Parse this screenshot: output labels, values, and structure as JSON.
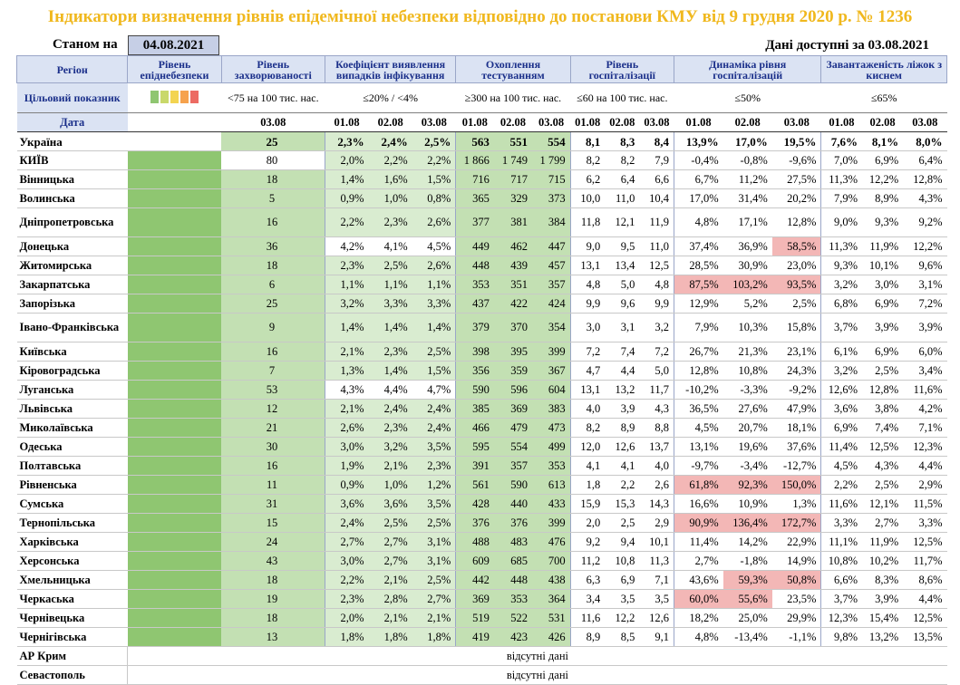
{
  "title": "Індикатори визначення рівнів епідемічної небезпеки відповідно до постанови КМУ від 9 грудня 2020 р. № 1236",
  "as_of_label": "Станом на",
  "as_of_date": "04.08.2021",
  "available_label": "Дані доступні за 03.08.2021",
  "headers": {
    "region": "Регіон",
    "level": "Рівень епіднебезпеки",
    "incidence": "Рівень захворюваності",
    "positivity": "Коефіцієнт виявлення випадків інфікування",
    "testing": "Охоплення тестуванням",
    "hosp": "Рівень госпіталізації",
    "hosp_dyn": "Динаміка рівня госпіталізацій",
    "oxygen": "Завантаженість ліжок з киснем"
  },
  "targets": {
    "label": "Цільовий показник",
    "incidence": "<75 на 100 тис. нас.",
    "positivity": "≤20% / <4%",
    "testing": "≥300 на 100 тис. нас.",
    "hosp": "≤60 на 100 тис. нас.",
    "hosp_dyn": "≤50%",
    "oxygen": "≤65%"
  },
  "level_colors": [
    "#8fc671",
    "#c9d86a",
    "#f3d451",
    "#f6a24d",
    "#ec6b63"
  ],
  "dates": {
    "label": "Дата",
    "incidence": "03.08",
    "d1": "01.08",
    "d2": "02.08",
    "d3": "03.08"
  },
  "absent_text": "відсутні дані",
  "rows": [
    {
      "region": "Україна",
      "inc": "25",
      "pos": [
        "2,3%",
        "2,4%",
        "2,5%"
      ],
      "test": [
        "563",
        "551",
        "554"
      ],
      "hosp": [
        "8,1",
        "8,3",
        "8,4"
      ],
      "dyn": [
        "13,9%",
        "17,0%",
        "19,5%"
      ],
      "oxy": [
        "7,6%",
        "8,1%",
        "8,0%"
      ]
    },
    {
      "region": "КИЇВ",
      "inc": "80",
      "pos": [
        "2,0%",
        "2,2%",
        "2,2%"
      ],
      "test": [
        "1 866",
        "1 749",
        "1 799"
      ],
      "hosp": [
        "8,2",
        "8,2",
        "7,9"
      ],
      "dyn": [
        "-0,4%",
        "-0,8%",
        "-9,6%"
      ],
      "oxy": [
        "7,0%",
        "6,9%",
        "6,4%"
      ]
    },
    {
      "region": "Вінницька",
      "inc": "18",
      "pos": [
        "1,4%",
        "1,6%",
        "1,5%"
      ],
      "test": [
        "716",
        "717",
        "715"
      ],
      "hosp": [
        "6,2",
        "6,4",
        "6,6"
      ],
      "dyn": [
        "6,7%",
        "11,2%",
        "27,5%"
      ],
      "oxy": [
        "11,3%",
        "12,2%",
        "12,8%"
      ]
    },
    {
      "region": "Волинська",
      "inc": "5",
      "pos": [
        "0,9%",
        "1,0%",
        "0,8%"
      ],
      "test": [
        "365",
        "329",
        "373"
      ],
      "hosp": [
        "10,0",
        "11,0",
        "10,4"
      ],
      "dyn": [
        "17,0%",
        "31,4%",
        "20,2%"
      ],
      "oxy": [
        "7,9%",
        "8,9%",
        "4,3%"
      ]
    },
    {
      "region": "Дніпропетровська",
      "inc": "16",
      "pos": [
        "2,2%",
        "2,3%",
        "2,6%"
      ],
      "test": [
        "377",
        "381",
        "384"
      ],
      "hosp": [
        "11,8",
        "12,1",
        "11,9"
      ],
      "dyn": [
        "4,8%",
        "17,1%",
        "12,8%"
      ],
      "oxy": [
        "9,0%",
        "9,3%",
        "9,2%"
      ]
    },
    {
      "region": "Донецька",
      "inc": "36",
      "pos": [
        "4,2%",
        "4,1%",
        "4,5%"
      ],
      "test": [
        "449",
        "462",
        "447"
      ],
      "hosp": [
        "9,0",
        "9,5",
        "11,0"
      ],
      "dyn": [
        "37,4%",
        "36,9%",
        "58,5%"
      ],
      "oxy": [
        "11,3%",
        "11,9%",
        "12,2%"
      ]
    },
    {
      "region": "Житомирська",
      "inc": "18",
      "pos": [
        "2,3%",
        "2,5%",
        "2,6%"
      ],
      "test": [
        "448",
        "439",
        "457"
      ],
      "hosp": [
        "13,1",
        "13,4",
        "12,5"
      ],
      "dyn": [
        "28,5%",
        "30,9%",
        "23,0%"
      ],
      "oxy": [
        "9,3%",
        "10,1%",
        "9,6%"
      ]
    },
    {
      "region": "Закарпатська",
      "inc": "6",
      "pos": [
        "1,1%",
        "1,1%",
        "1,1%"
      ],
      "test": [
        "353",
        "351",
        "357"
      ],
      "hosp": [
        "4,8",
        "5,0",
        "4,8"
      ],
      "dyn": [
        "87,5%",
        "103,2%",
        "93,5%"
      ],
      "oxy": [
        "3,2%",
        "3,0%",
        "3,1%"
      ]
    },
    {
      "region": "Запорізька",
      "inc": "25",
      "pos": [
        "3,2%",
        "3,3%",
        "3,3%"
      ],
      "test": [
        "437",
        "422",
        "424"
      ],
      "hosp": [
        "9,9",
        "9,6",
        "9,9"
      ],
      "dyn": [
        "12,9%",
        "5,2%",
        "2,5%"
      ],
      "oxy": [
        "6,8%",
        "6,9%",
        "7,2%"
      ]
    },
    {
      "region": "Івано-Франківська",
      "inc": "9",
      "pos": [
        "1,4%",
        "1,4%",
        "1,4%"
      ],
      "test": [
        "379",
        "370",
        "354"
      ],
      "hosp": [
        "3,0",
        "3,1",
        "3,2"
      ],
      "dyn": [
        "7,9%",
        "10,3%",
        "15,8%"
      ],
      "oxy": [
        "3,7%",
        "3,9%",
        "3,9%"
      ]
    },
    {
      "region": "Київська",
      "inc": "16",
      "pos": [
        "2,1%",
        "2,3%",
        "2,5%"
      ],
      "test": [
        "398",
        "395",
        "399"
      ],
      "hosp": [
        "7,2",
        "7,4",
        "7,2"
      ],
      "dyn": [
        "26,7%",
        "21,3%",
        "23,1%"
      ],
      "oxy": [
        "6,1%",
        "6,9%",
        "6,0%"
      ]
    },
    {
      "region": "Кіровоградська",
      "inc": "7",
      "pos": [
        "1,3%",
        "1,4%",
        "1,5%"
      ],
      "test": [
        "356",
        "359",
        "367"
      ],
      "hosp": [
        "4,7",
        "4,4",
        "5,0"
      ],
      "dyn": [
        "12,8%",
        "10,8%",
        "24,3%"
      ],
      "oxy": [
        "3,2%",
        "2,5%",
        "3,4%"
      ]
    },
    {
      "region": "Луганська",
      "inc": "53",
      "pos": [
        "4,3%",
        "4,4%",
        "4,7%"
      ],
      "test": [
        "590",
        "596",
        "604"
      ],
      "hosp": [
        "13,1",
        "13,2",
        "11,7"
      ],
      "dyn": [
        "-10,2%",
        "-3,3%",
        "-9,2%"
      ],
      "oxy": [
        "12,6%",
        "12,8%",
        "11,6%"
      ]
    },
    {
      "region": "Львівська",
      "inc": "12",
      "pos": [
        "2,1%",
        "2,4%",
        "2,4%"
      ],
      "test": [
        "385",
        "369",
        "383"
      ],
      "hosp": [
        "4,0",
        "3,9",
        "4,3"
      ],
      "dyn": [
        "36,5%",
        "27,6%",
        "47,9%"
      ],
      "oxy": [
        "3,6%",
        "3,8%",
        "4,2%"
      ]
    },
    {
      "region": "Миколаївська",
      "inc": "21",
      "pos": [
        "2,6%",
        "2,3%",
        "2,4%"
      ],
      "test": [
        "466",
        "479",
        "473"
      ],
      "hosp": [
        "8,2",
        "8,9",
        "8,8"
      ],
      "dyn": [
        "4,5%",
        "20,7%",
        "18,1%"
      ],
      "oxy": [
        "6,9%",
        "7,4%",
        "7,1%"
      ]
    },
    {
      "region": "Одеська",
      "inc": "30",
      "pos": [
        "3,0%",
        "3,2%",
        "3,5%"
      ],
      "test": [
        "595",
        "554",
        "499"
      ],
      "hosp": [
        "12,0",
        "12,6",
        "13,7"
      ],
      "dyn": [
        "13,1%",
        "19,6%",
        "37,6%"
      ],
      "oxy": [
        "11,4%",
        "12,5%",
        "12,3%"
      ]
    },
    {
      "region": "Полтавська",
      "inc": "16",
      "pos": [
        "1,9%",
        "2,1%",
        "2,3%"
      ],
      "test": [
        "391",
        "357",
        "353"
      ],
      "hosp": [
        "4,1",
        "4,1",
        "4,0"
      ],
      "dyn": [
        "-9,7%",
        "-3,4%",
        "-12,7%"
      ],
      "oxy": [
        "4,5%",
        "4,3%",
        "4,4%"
      ]
    },
    {
      "region": "Рівненська",
      "inc": "11",
      "pos": [
        "0,9%",
        "1,0%",
        "1,2%"
      ],
      "test": [
        "561",
        "590",
        "613"
      ],
      "hosp": [
        "1,8",
        "2,2",
        "2,6"
      ],
      "dyn": [
        "61,8%",
        "92,3%",
        "150,0%"
      ],
      "oxy": [
        "2,2%",
        "2,5%",
        "2,9%"
      ]
    },
    {
      "region": "Сумська",
      "inc": "31",
      "pos": [
        "3,6%",
        "3,6%",
        "3,5%"
      ],
      "test": [
        "428",
        "440",
        "433"
      ],
      "hosp": [
        "15,9",
        "15,3",
        "14,3"
      ],
      "dyn": [
        "16,6%",
        "10,9%",
        "1,3%"
      ],
      "oxy": [
        "11,6%",
        "12,1%",
        "11,5%"
      ]
    },
    {
      "region": "Тернопільська",
      "inc": "15",
      "pos": [
        "2,4%",
        "2,5%",
        "2,5%"
      ],
      "test": [
        "376",
        "376",
        "399"
      ],
      "hosp": [
        "2,0",
        "2,5",
        "2,9"
      ],
      "dyn": [
        "90,9%",
        "136,4%",
        "172,7%"
      ],
      "oxy": [
        "3,3%",
        "2,7%",
        "3,3%"
      ]
    },
    {
      "region": "Харківська",
      "inc": "24",
      "pos": [
        "2,7%",
        "2,7%",
        "3,1%"
      ],
      "test": [
        "488",
        "483",
        "476"
      ],
      "hosp": [
        "9,2",
        "9,4",
        "10,1"
      ],
      "dyn": [
        "11,4%",
        "14,2%",
        "22,9%"
      ],
      "oxy": [
        "11,1%",
        "11,9%",
        "12,5%"
      ]
    },
    {
      "region": "Херсонська",
      "inc": "43",
      "pos": [
        "3,0%",
        "2,7%",
        "3,1%"
      ],
      "test": [
        "609",
        "685",
        "700"
      ],
      "hosp": [
        "11,2",
        "10,8",
        "11,3"
      ],
      "dyn": [
        "2,7%",
        "-1,8%",
        "14,9%"
      ],
      "oxy": [
        "10,8%",
        "10,2%",
        "11,7%"
      ]
    },
    {
      "region": "Хмельницька",
      "inc": "18",
      "pos": [
        "2,2%",
        "2,1%",
        "2,5%"
      ],
      "test": [
        "442",
        "448",
        "438"
      ],
      "hosp": [
        "6,3",
        "6,9",
        "7,1"
      ],
      "dyn": [
        "43,6%",
        "59,3%",
        "50,8%"
      ],
      "oxy": [
        "6,6%",
        "8,3%",
        "8,6%"
      ]
    },
    {
      "region": "Черкаська",
      "inc": "19",
      "pos": [
        "2,3%",
        "2,8%",
        "2,7%"
      ],
      "test": [
        "369",
        "353",
        "364"
      ],
      "hosp": [
        "3,4",
        "3,5",
        "3,5"
      ],
      "dyn": [
        "60,0%",
        "55,6%",
        "23,5%"
      ],
      "oxy": [
        "3,7%",
        "3,9%",
        "4,4%"
      ]
    },
    {
      "region": "Чернівецька",
      "inc": "18",
      "pos": [
        "2,0%",
        "2,1%",
        "2,1%"
      ],
      "test": [
        "519",
        "522",
        "531"
      ],
      "hosp": [
        "11,6",
        "12,2",
        "12,6"
      ],
      "dyn": [
        "18,2%",
        "25,0%",
        "29,9%"
      ],
      "oxy": [
        "12,3%",
        "15,4%",
        "12,5%"
      ]
    },
    {
      "region": "Чернігівська",
      "inc": "13",
      "pos": [
        "1,8%",
        "1,8%",
        "1,8%"
      ],
      "test": [
        "419",
        "423",
        "426"
      ],
      "hosp": [
        "8,9",
        "8,5",
        "9,1"
      ],
      "dyn": [
        "4,8%",
        "-13,4%",
        "-1,1%"
      ],
      "oxy": [
        "9,8%",
        "13,2%",
        "13,5%"
      ]
    }
  ],
  "absent_rows": [
    "АР Крим",
    "Севастополь"
  ]
}
